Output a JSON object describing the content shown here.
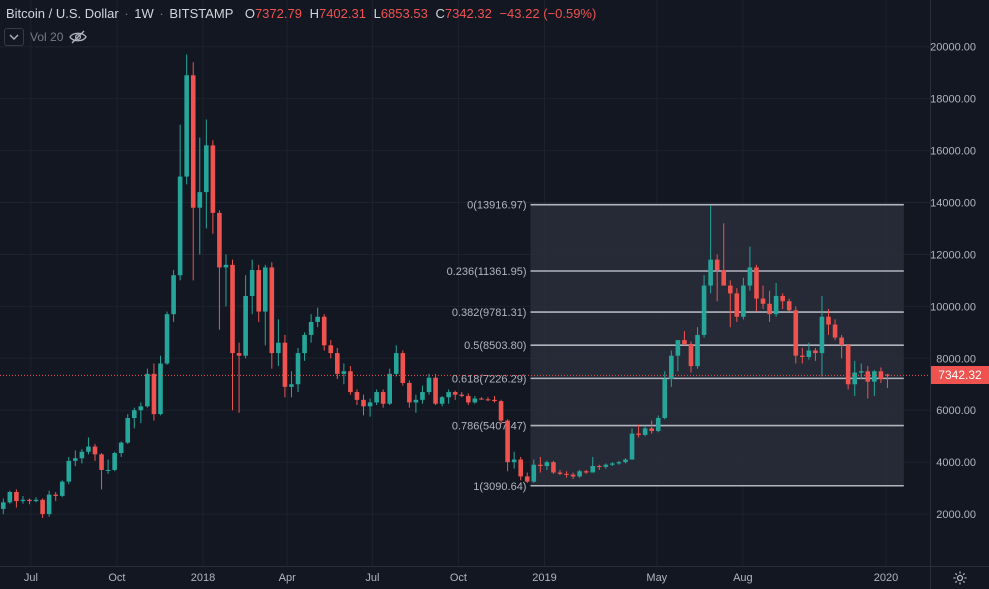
{
  "legend": {
    "symbol": "Bitcoin / U.S. Dollar",
    "interval": "1W",
    "exchange": "BITSTAMP",
    "open_label": "O",
    "open": "7372.79",
    "high_label": "H",
    "high": "7402.31",
    "low_label": "L",
    "low": "6853.53",
    "close_label": "C",
    "close": "7342.32",
    "change": "−43.22 (−0.59%)"
  },
  "volume_indicator": {
    "label": "Vol 20",
    "toggle_icon": "chevron-down-icon",
    "hide_icon": "eye-off-icon"
  },
  "current_price": {
    "label": "7342.32",
    "value": 7342.32,
    "color": "#ef5350"
  },
  "settings_icon": "gear-icon",
  "colors": {
    "up": "#26a69a",
    "down": "#ef5350",
    "background": "#131722",
    "grid": "#1e222d",
    "fib_line": "#b2b5be",
    "fib_fill": "#2a2e39"
  },
  "chart_data": {
    "type": "candlestick",
    "symbol": "Bitcoin / U.S. Dollar",
    "interval": "1W",
    "y_ticks": [
      2000,
      4000,
      6000,
      8000,
      10000,
      12000,
      14000,
      16000,
      18000,
      20000
    ],
    "y_tick_labels": [
      "2000.00",
      "4000.00",
      "6000.00",
      "8000.00",
      "10000.00",
      "12000.00",
      "14000.00",
      "16000.00",
      "18000.00",
      "20000.00"
    ],
    "ylim": [
      0,
      21800
    ],
    "x_ticks": [
      {
        "label": "Jul",
        "date": "2017-07-01"
      },
      {
        "label": "Oct",
        "date": "2017-10-01"
      },
      {
        "label": "2018",
        "date": "2018-01-01"
      },
      {
        "label": "Apr",
        "date": "2018-04-01"
      },
      {
        "label": "Jul",
        "date": "2018-07-01"
      },
      {
        "label": "Oct",
        "date": "2018-10-01"
      },
      {
        "label": "2019",
        "date": "2019-01-01"
      },
      {
        "label": "May",
        "date": "2019-05-01"
      },
      {
        "label": "Aug",
        "date": "2019-08-01"
      },
      {
        "label": "2020",
        "date": "2020-01-01"
      }
    ],
    "xlim": [
      "2017-05-29",
      "2020-02-17"
    ],
    "grid": true,
    "fibonacci": {
      "start": "2018-12-17",
      "end": "2020-01-20",
      "levels": [
        {
          "ratio": "0",
          "value": 13916.97,
          "label": "0(13916.97)"
        },
        {
          "ratio": "0.236",
          "value": 11361.95,
          "label": "0.236(11361.95)"
        },
        {
          "ratio": "0.382",
          "value": 9781.31,
          "label": "0.382(9781.31)"
        },
        {
          "ratio": "0.5",
          "value": 8503.8,
          "label": "0.5(8503.80)"
        },
        {
          "ratio": "0.618",
          "value": 7226.29,
          "label": "0.618(7226.29)"
        },
        {
          "ratio": "0.786",
          "value": 5407.47,
          "label": "0.786(5407.47)"
        },
        {
          "ratio": "1",
          "value": 3090.64,
          "label": "1(3090.64)"
        }
      ]
    },
    "current_price": 7342.32,
    "candles": [
      {
        "date": "2017-05-29",
        "o": 2200,
        "h": 2600,
        "l": 2000,
        "c": 2450
      },
      {
        "date": "2017-06-05",
        "o": 2450,
        "h": 2900,
        "l": 2400,
        "c": 2850
      },
      {
        "date": "2017-06-12",
        "o": 2850,
        "h": 2950,
        "l": 2250,
        "c": 2500
      },
      {
        "date": "2017-06-19",
        "o": 2500,
        "h": 2700,
        "l": 2400,
        "c": 2550
      },
      {
        "date": "2017-06-26",
        "o": 2550,
        "h": 2600,
        "l": 2380,
        "c": 2500
      },
      {
        "date": "2017-07-03",
        "o": 2500,
        "h": 2650,
        "l": 2450,
        "c": 2550
      },
      {
        "date": "2017-07-10",
        "o": 2550,
        "h": 2600,
        "l": 1850,
        "c": 2000
      },
      {
        "date": "2017-07-17",
        "o": 2000,
        "h": 2900,
        "l": 1900,
        "c": 2750
      },
      {
        "date": "2017-07-24",
        "o": 2750,
        "h": 2850,
        "l": 2500,
        "c": 2700
      },
      {
        "date": "2017-07-31",
        "o": 2700,
        "h": 3300,
        "l": 2650,
        "c": 3250
      },
      {
        "date": "2017-08-07",
        "o": 3250,
        "h": 4200,
        "l": 3150,
        "c": 4050
      },
      {
        "date": "2017-08-14",
        "o": 4050,
        "h": 4450,
        "l": 3850,
        "c": 4150
      },
      {
        "date": "2017-08-21",
        "o": 4150,
        "h": 4500,
        "l": 3950,
        "c": 4400
      },
      {
        "date": "2017-08-28",
        "o": 4400,
        "h": 4950,
        "l": 4300,
        "c": 4600
      },
      {
        "date": "2017-09-04",
        "o": 4600,
        "h": 4700,
        "l": 4050,
        "c": 4300
      },
      {
        "date": "2017-09-11",
        "o": 4300,
        "h": 4350,
        "l": 2950,
        "c": 3700
      },
      {
        "date": "2017-09-18",
        "o": 3700,
        "h": 4100,
        "l": 3550,
        "c": 3700
      },
      {
        "date": "2017-09-25",
        "o": 3700,
        "h": 4400,
        "l": 3650,
        "c": 4350
      },
      {
        "date": "2017-10-02",
        "o": 4350,
        "h": 4800,
        "l": 4200,
        "c": 4750
      },
      {
        "date": "2017-10-09",
        "o": 4750,
        "h": 5850,
        "l": 4700,
        "c": 5700
      },
      {
        "date": "2017-10-16",
        "o": 5700,
        "h": 6100,
        "l": 5300,
        "c": 6000
      },
      {
        "date": "2017-10-23",
        "o": 6000,
        "h": 6300,
        "l": 5500,
        "c": 6150
      },
      {
        "date": "2017-10-30",
        "o": 6150,
        "h": 7600,
        "l": 6100,
        "c": 7400
      },
      {
        "date": "2017-11-06",
        "o": 7400,
        "h": 7800,
        "l": 5600,
        "c": 5850
      },
      {
        "date": "2017-11-13",
        "o": 5850,
        "h": 8100,
        "l": 5800,
        "c": 7800
      },
      {
        "date": "2017-11-20",
        "o": 7800,
        "h": 9800,
        "l": 7750,
        "c": 9700
      },
      {
        "date": "2017-11-27",
        "o": 9700,
        "h": 11400,
        "l": 9400,
        "c": 11200
      },
      {
        "date": "2017-12-04",
        "o": 11200,
        "h": 17000,
        "l": 11000,
        "c": 15000
      },
      {
        "date": "2017-12-11",
        "o": 15000,
        "h": 19700,
        "l": 14700,
        "c": 18900
      },
      {
        "date": "2017-12-18",
        "o": 18900,
        "h": 19400,
        "l": 11000,
        "c": 13800
      },
      {
        "date": "2017-12-25",
        "o": 13800,
        "h": 16500,
        "l": 12000,
        "c": 14400
      },
      {
        "date": "2018-01-01",
        "o": 14400,
        "h": 17200,
        "l": 13000,
        "c": 16200
      },
      {
        "date": "2018-01-08",
        "o": 16200,
        "h": 16400,
        "l": 12800,
        "c": 13600
      },
      {
        "date": "2018-01-15",
        "o": 13600,
        "h": 13700,
        "l": 9100,
        "c": 11500
      },
      {
        "date": "2018-01-22",
        "o": 11500,
        "h": 12000,
        "l": 10000,
        "c": 11600
      },
      {
        "date": "2018-01-29",
        "o": 11600,
        "h": 11800,
        "l": 6000,
        "c": 8200
      },
      {
        "date": "2018-02-05",
        "o": 8200,
        "h": 8600,
        "l": 5900,
        "c": 8100
      },
      {
        "date": "2018-02-12",
        "o": 8100,
        "h": 11200,
        "l": 8000,
        "c": 10400
      },
      {
        "date": "2018-02-19",
        "o": 10400,
        "h": 11800,
        "l": 9700,
        "c": 11400
      },
      {
        "date": "2018-02-26",
        "o": 11400,
        "h": 11600,
        "l": 9400,
        "c": 9800
      },
      {
        "date": "2018-03-05",
        "o": 9800,
        "h": 11600,
        "l": 8500,
        "c": 11500
      },
      {
        "date": "2018-03-12",
        "o": 11500,
        "h": 11700,
        "l": 7600,
        "c": 8200
      },
      {
        "date": "2018-03-19",
        "o": 8200,
        "h": 9500,
        "l": 7700,
        "c": 8600
      },
      {
        "date": "2018-03-26",
        "o": 8600,
        "h": 8900,
        "l": 6500,
        "c": 6900
      },
      {
        "date": "2018-04-02",
        "o": 6900,
        "h": 7500,
        "l": 6500,
        "c": 7000
      },
      {
        "date": "2018-04-09",
        "o": 7000,
        "h": 8400,
        "l": 6700,
        "c": 8200
      },
      {
        "date": "2018-04-16",
        "o": 8200,
        "h": 9000,
        "l": 7900,
        "c": 8900
      },
      {
        "date": "2018-04-23",
        "o": 8900,
        "h": 9700,
        "l": 8600,
        "c": 9400
      },
      {
        "date": "2018-04-30",
        "o": 9400,
        "h": 9950,
        "l": 9200,
        "c": 9600
      },
      {
        "date": "2018-05-07",
        "o": 9600,
        "h": 9700,
        "l": 8300,
        "c": 8500
      },
      {
        "date": "2018-05-14",
        "o": 8500,
        "h": 8700,
        "l": 8000,
        "c": 8200
      },
      {
        "date": "2018-05-21",
        "o": 8200,
        "h": 8400,
        "l": 7200,
        "c": 7400
      },
      {
        "date": "2018-05-28",
        "o": 7400,
        "h": 7800,
        "l": 7000,
        "c": 7500
      },
      {
        "date": "2018-06-04",
        "o": 7500,
        "h": 7700,
        "l": 6600,
        "c": 6700
      },
      {
        "date": "2018-06-11",
        "o": 6700,
        "h": 6800,
        "l": 6200,
        "c": 6400
      },
      {
        "date": "2018-06-18",
        "o": 6400,
        "h": 6600,
        "l": 5800,
        "c": 6150
      },
      {
        "date": "2018-06-25",
        "o": 6150,
        "h": 6450,
        "l": 5750,
        "c": 6300
      },
      {
        "date": "2018-07-02",
        "o": 6300,
        "h": 6800,
        "l": 6200,
        "c": 6700
      },
      {
        "date": "2018-07-09",
        "o": 6700,
        "h": 6800,
        "l": 6100,
        "c": 6250
      },
      {
        "date": "2018-07-16",
        "o": 6250,
        "h": 7600,
        "l": 6200,
        "c": 7400
      },
      {
        "date": "2018-07-23",
        "o": 7400,
        "h": 8500,
        "l": 7300,
        "c": 8200
      },
      {
        "date": "2018-07-30",
        "o": 8200,
        "h": 8300,
        "l": 6950,
        "c": 7050
      },
      {
        "date": "2018-08-06",
        "o": 7050,
        "h": 7150,
        "l": 6100,
        "c": 6300
      },
      {
        "date": "2018-08-13",
        "o": 6300,
        "h": 6600,
        "l": 5900,
        "c": 6400
      },
      {
        "date": "2018-08-20",
        "o": 6400,
        "h": 6950,
        "l": 6250,
        "c": 6700
      },
      {
        "date": "2018-08-27",
        "o": 6700,
        "h": 7400,
        "l": 6600,
        "c": 7250
      },
      {
        "date": "2018-09-03",
        "o": 7250,
        "h": 7400,
        "l": 6200,
        "c": 6250
      },
      {
        "date": "2018-09-10",
        "o": 6250,
        "h": 6550,
        "l": 6150,
        "c": 6500
      },
      {
        "date": "2018-09-17",
        "o": 6500,
        "h": 6800,
        "l": 6250,
        "c": 6700
      },
      {
        "date": "2018-09-24",
        "o": 6700,
        "h": 6750,
        "l": 6400,
        "c": 6600
      },
      {
        "date": "2018-10-01",
        "o": 6600,
        "h": 6700,
        "l": 6500,
        "c": 6550
      },
      {
        "date": "2018-10-08",
        "o": 6550,
        "h": 6650,
        "l": 6200,
        "c": 6300
      },
      {
        "date": "2018-10-15",
        "o": 6300,
        "h": 6550,
        "l": 6250,
        "c": 6450
      },
      {
        "date": "2018-10-22",
        "o": 6450,
        "h": 6500,
        "l": 6400,
        "c": 6420
      },
      {
        "date": "2018-10-29",
        "o": 6420,
        "h": 6500,
        "l": 6350,
        "c": 6400
      },
      {
        "date": "2018-11-05",
        "o": 6400,
        "h": 6550,
        "l": 6300,
        "c": 6350
      },
      {
        "date": "2018-11-12",
        "o": 6350,
        "h": 6400,
        "l": 5450,
        "c": 5600
      },
      {
        "date": "2018-11-19",
        "o": 5600,
        "h": 5650,
        "l": 3650,
        "c": 4000
      },
      {
        "date": "2018-11-26",
        "o": 4000,
        "h": 4400,
        "l": 3750,
        "c": 4100
      },
      {
        "date": "2018-12-03",
        "o": 4100,
        "h": 4200,
        "l": 3300,
        "c": 3450
      },
      {
        "date": "2018-12-10",
        "o": 3450,
        "h": 3600,
        "l": 3200,
        "c": 3250
      },
      {
        "date": "2018-12-17",
        "o": 3250,
        "h": 4100,
        "l": 3200,
        "c": 3900
      },
      {
        "date": "2018-12-24",
        "o": 3900,
        "h": 4200,
        "l": 3600,
        "c": 3850
      },
      {
        "date": "2018-12-31",
        "o": 3850,
        "h": 4050,
        "l": 3700,
        "c": 4000
      },
      {
        "date": "2019-01-07",
        "o": 4000,
        "h": 4050,
        "l": 3550,
        "c": 3600
      },
      {
        "date": "2019-01-14",
        "o": 3600,
        "h": 3700,
        "l": 3500,
        "c": 3550
      },
      {
        "date": "2019-01-21",
        "o": 3550,
        "h": 3650,
        "l": 3400,
        "c": 3520
      },
      {
        "date": "2019-01-28",
        "o": 3520,
        "h": 3600,
        "l": 3350,
        "c": 3450
      },
      {
        "date": "2019-02-04",
        "o": 3450,
        "h": 3700,
        "l": 3400,
        "c": 3650
      },
      {
        "date": "2019-02-11",
        "o": 3650,
        "h": 3700,
        "l": 3550,
        "c": 3600
      },
      {
        "date": "2019-02-18",
        "o": 3600,
        "h": 4200,
        "l": 3600,
        "c": 3850
      },
      {
        "date": "2019-02-25",
        "o": 3850,
        "h": 3900,
        "l": 3700,
        "c": 3820
      },
      {
        "date": "2019-03-04",
        "o": 3820,
        "h": 3950,
        "l": 3750,
        "c": 3900
      },
      {
        "date": "2019-03-11",
        "o": 3900,
        "h": 4000,
        "l": 3850,
        "c": 3950
      },
      {
        "date": "2019-03-18",
        "o": 3950,
        "h": 4050,
        "l": 3900,
        "c": 4000
      },
      {
        "date": "2019-03-25",
        "o": 4000,
        "h": 4150,
        "l": 3950,
        "c": 4100
      },
      {
        "date": "2019-04-01",
        "o": 4100,
        "h": 5300,
        "l": 4100,
        "c": 5100
      },
      {
        "date": "2019-04-08",
        "o": 5100,
        "h": 5450,
        "l": 4950,
        "c": 5050
      },
      {
        "date": "2019-04-15",
        "o": 5050,
        "h": 5400,
        "l": 5000,
        "c": 5300
      },
      {
        "date": "2019-04-22",
        "o": 5300,
        "h": 5600,
        "l": 5100,
        "c": 5200
      },
      {
        "date": "2019-04-29",
        "o": 5200,
        "h": 5800,
        "l": 5150,
        "c": 5700
      },
      {
        "date": "2019-05-06",
        "o": 5700,
        "h": 7500,
        "l": 5650,
        "c": 7200
      },
      {
        "date": "2019-05-13",
        "o": 7200,
        "h": 8300,
        "l": 6900,
        "c": 8100
      },
      {
        "date": "2019-05-20",
        "o": 8100,
        "h": 8600,
        "l": 7500,
        "c": 8700
      },
      {
        "date": "2019-05-27",
        "o": 8700,
        "h": 9050,
        "l": 8500,
        "c": 8550
      },
      {
        "date": "2019-06-03",
        "o": 8550,
        "h": 8650,
        "l": 7450,
        "c": 7700
      },
      {
        "date": "2019-06-10",
        "o": 7700,
        "h": 9200,
        "l": 7600,
        "c": 8900
      },
      {
        "date": "2019-06-17",
        "o": 8900,
        "h": 11200,
        "l": 8800,
        "c": 10800
      },
      {
        "date": "2019-06-24",
        "o": 10800,
        "h": 13900,
        "l": 10500,
        "c": 11800
      },
      {
        "date": "2019-07-01",
        "o": 11800,
        "h": 12000,
        "l": 10200,
        "c": 11400
      },
      {
        "date": "2019-07-08",
        "o": 11400,
        "h": 13200,
        "l": 11000,
        "c": 10800
      },
      {
        "date": "2019-07-15",
        "o": 10800,
        "h": 11000,
        "l": 9200,
        "c": 10500
      },
      {
        "date": "2019-07-22",
        "o": 10500,
        "h": 10700,
        "l": 9400,
        "c": 9600
      },
      {
        "date": "2019-07-29",
        "o": 9600,
        "h": 11100,
        "l": 9500,
        "c": 10800
      },
      {
        "date": "2019-08-05",
        "o": 10800,
        "h": 12300,
        "l": 10600,
        "c": 11500
      },
      {
        "date": "2019-08-12",
        "o": 11500,
        "h": 11600,
        "l": 9800,
        "c": 10300
      },
      {
        "date": "2019-08-19",
        "o": 10300,
        "h": 10800,
        "l": 9900,
        "c": 10100
      },
      {
        "date": "2019-08-26",
        "o": 10100,
        "h": 10600,
        "l": 9400,
        "c": 9700
      },
      {
        "date": "2019-09-02",
        "o": 9700,
        "h": 10900,
        "l": 9600,
        "c": 10400
      },
      {
        "date": "2019-09-09",
        "o": 10400,
        "h": 10500,
        "l": 9900,
        "c": 10200
      },
      {
        "date": "2019-09-16",
        "o": 10200,
        "h": 10300,
        "l": 9800,
        "c": 9850
      },
      {
        "date": "2019-09-23",
        "o": 9850,
        "h": 10000,
        "l": 7800,
        "c": 8100
      },
      {
        "date": "2019-09-30",
        "o": 8100,
        "h": 8400,
        "l": 7800,
        "c": 8050
      },
      {
        "date": "2019-10-07",
        "o": 8050,
        "h": 8600,
        "l": 7950,
        "c": 8300
      },
      {
        "date": "2019-10-14",
        "o": 8300,
        "h": 8400,
        "l": 7900,
        "c": 8200
      },
      {
        "date": "2019-10-21",
        "o": 8200,
        "h": 10400,
        "l": 7300,
        "c": 9600
      },
      {
        "date": "2019-10-28",
        "o": 9600,
        "h": 9900,
        "l": 8900,
        "c": 9300
      },
      {
        "date": "2019-11-04",
        "o": 9300,
        "h": 9500,
        "l": 8700,
        "c": 8800
      },
      {
        "date": "2019-11-11",
        "o": 8800,
        "h": 8900,
        "l": 8000,
        "c": 8500
      },
      {
        "date": "2019-11-18",
        "o": 8500,
        "h": 8550,
        "l": 6800,
        "c": 7000
      },
      {
        "date": "2019-11-25",
        "o": 7000,
        "h": 7900,
        "l": 6550,
        "c": 7450
      },
      {
        "date": "2019-12-02",
        "o": 7450,
        "h": 7800,
        "l": 7200,
        "c": 7500
      },
      {
        "date": "2019-12-09",
        "o": 7500,
        "h": 7700,
        "l": 6450,
        "c": 7100
      },
      {
        "date": "2019-12-16",
        "o": 7100,
        "h": 7550,
        "l": 6550,
        "c": 7500
      },
      {
        "date": "2019-12-23",
        "o": 7500,
        "h": 7650,
        "l": 7050,
        "c": 7200
      },
      {
        "date": "2019-12-30",
        "o": 7372.79,
        "h": 7402.31,
        "l": 6853.53,
        "c": 7342.32
      }
    ]
  }
}
